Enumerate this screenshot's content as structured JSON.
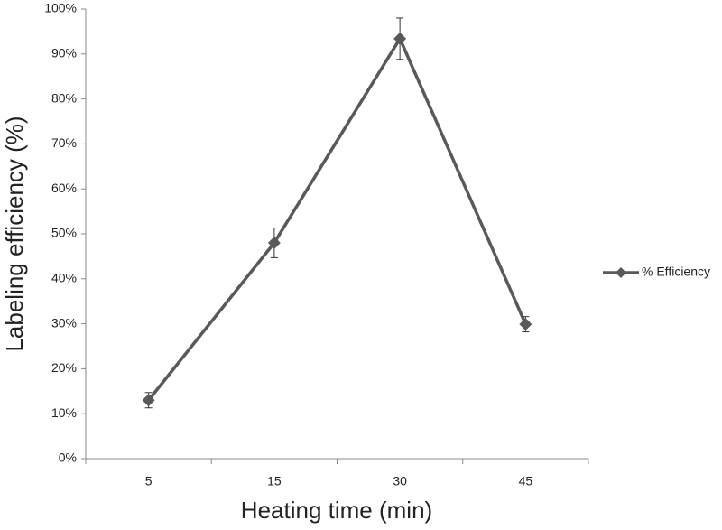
{
  "chart_data": {
    "type": "line",
    "x_label": "Heating time (min)",
    "y_label": "Labeling efficiency (%)",
    "categories": [
      "5",
      "15",
      "30",
      "45"
    ],
    "series": [
      {
        "name": "% Efficiency",
        "color": "#595959",
        "values": [
          13,
          48,
          93.4,
          29.9
        ],
        "errors": [
          1.7,
          3.3,
          4.6,
          1.7
        ]
      }
    ],
    "ylim": [
      0,
      100
    ],
    "yticks": [
      {
        "value": 0,
        "label": "0%"
      },
      {
        "value": 10,
        "label": "10%"
      },
      {
        "value": 20,
        "label": "20%"
      },
      {
        "value": 30,
        "label": "30%"
      },
      {
        "value": 40,
        "label": "40%"
      },
      {
        "value": 50,
        "label": "50%"
      },
      {
        "value": 60,
        "label": "60%"
      },
      {
        "value": 70,
        "label": "70%"
      },
      {
        "value": 80,
        "label": "80%"
      },
      {
        "value": 90,
        "label": "90%"
      },
      {
        "value": 100,
        "label": "100%"
      }
    ],
    "grid": false,
    "legend": "right"
  }
}
